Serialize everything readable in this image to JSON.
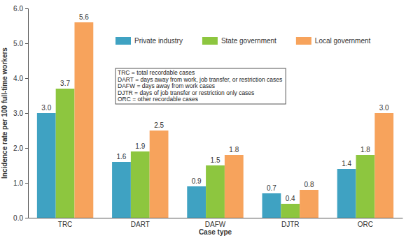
{
  "chart_data": {
    "type": "bar",
    "x_label": "Case type",
    "y_label": "Incidence rate per 100 full-time workers",
    "categories": [
      "TRC",
      "DART",
      "DAFW",
      "DJTR",
      "ORC"
    ],
    "series": [
      {
        "name": "Private industry",
        "color": "#3fa2c2",
        "values": [
          3.0,
          1.6,
          0.9,
          0.7,
          1.4
        ],
        "value_labels": [
          "3.0",
          "1.6",
          "0.9",
          "0.7",
          "1.4"
        ]
      },
      {
        "name": "State government",
        "color": "#8dc63f",
        "values": [
          3.7,
          1.9,
          1.5,
          0.4,
          1.8
        ],
        "value_labels": [
          "3.7",
          "1.9",
          "1.5",
          "0.4",
          "1.8"
        ]
      },
      {
        "name": "Local government",
        "color": "#f7a35c",
        "values": [
          5.6,
          2.5,
          1.8,
          0.8,
          3.0
        ],
        "value_labels": [
          "5.6",
          "2.5",
          "1.8",
          "0.8",
          "3.0"
        ]
      }
    ],
    "ylim": [
      0,
      6
    ],
    "yticks": [
      {
        "value": 0,
        "label": "0.0"
      },
      {
        "value": 1,
        "label": "1.0"
      },
      {
        "value": 2,
        "label": "2.0"
      },
      {
        "value": 3,
        "label": "3.0"
      },
      {
        "value": 4,
        "label": "4.0"
      },
      {
        "value": 5,
        "label": "5.0"
      },
      {
        "value": 6,
        "label": "6.0"
      }
    ],
    "grid": false,
    "legend": "top",
    "data_labels": true,
    "annotations": [
      "TRC = total recordable cases",
      "DART = days away from work, job transfer, or restriction cases",
      "DAFW = days away from work cases",
      "DJTR = days of job transfer or restriction only cases",
      "ORC = other recordable cases"
    ]
  }
}
